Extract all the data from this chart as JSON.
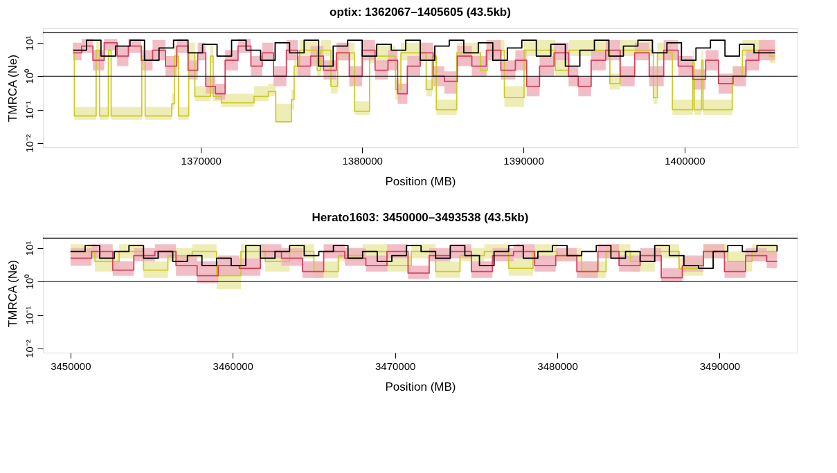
{
  "chart_data": [
    {
      "type": "step",
      "title": "optix: 1362067–1405605 (43.5kb)",
      "xlabel": "Position (MB)",
      "ylabel": "TMRCA (Ne)",
      "log": "y",
      "grid": false,
      "xlim": [
        1360200,
        1407000
      ],
      "xticks": [
        1370000,
        1380000,
        1390000,
        1400000
      ],
      "ylim": [
        0.0075,
        27
      ],
      "yticks": [
        {
          "value": 0.01,
          "label": "10⁻²"
        },
        {
          "value": 0.1,
          "label": "10⁻¹"
        },
        {
          "value": 1,
          "label": "10⁰"
        },
        {
          "value": 10,
          "label": "10¹"
        }
      ],
      "ref_lines": [
        {
          "axis": "y",
          "value": 1,
          "color": "#000000"
        },
        {
          "axis": "y",
          "value": 20,
          "color": "#000000"
        }
      ],
      "series": [
        {
          "color": "#cdcb28",
          "x": [
            1362067,
            1362150,
            1363500,
            1363710,
            1364260,
            1364430,
            1366330,
            1366540,
            1368190,
            1368350,
            1368610,
            1369240,
            1369620,
            1370590,
            1370760,
            1371270,
            1373290,
            1374180,
            1374640,
            1375610,
            1375780,
            1376120,
            1377210,
            1377430,
            1378060,
            1378480,
            1379530,
            1380460,
            1382070,
            1382400,
            1383970,
            1384340,
            1384600,
            1385860,
            1387340,
            1387760,
            1388820,
            1390040,
            1391980,
            1392830,
            1395360,
            1395990,
            1398060,
            1398310,
            1399240,
            1400500,
            1400590,
            1401050,
            1401140,
            1402950,
            1403580,
            1405270,
            1405605
          ],
          "values": [
            5,
            0.065,
            6,
            0.065,
            6,
            0.065,
            4,
            0.065,
            0.15,
            4,
            0.065,
            5,
            0.25,
            4,
            0.25,
            0.16,
            0.25,
            0.35,
            0.044,
            0.2,
            2,
            6,
            1.5,
            6,
            0.5,
            5,
            0.09,
            4,
            0.4,
            5,
            0.4,
            4,
            0.1,
            5,
            1.5,
            6,
            0.23,
            6,
            1.5,
            6,
            0.6,
            6,
            0.23,
            5,
            0.1,
            3,
            0.1,
            3,
            0.1,
            1,
            6,
            4,
            4
          ],
          "lower": [
            3,
            0.05,
            4,
            0.05,
            4,
            0.05,
            2.5,
            0.05,
            0.1,
            2.5,
            0.05,
            3,
            0.18,
            2.5,
            0.18,
            0.12,
            0.18,
            0.25,
            0.04,
            0.1,
            1,
            4,
            1,
            4,
            0.3,
            3,
            0.07,
            2.5,
            0.2,
            3,
            0.25,
            2.5,
            0.07,
            3,
            1,
            4,
            0.12,
            4,
            1,
            4,
            0.4,
            4,
            0.15,
            3,
            0.07,
            2,
            0.07,
            2,
            0.07,
            0.7,
            4,
            2.5,
            2.5
          ],
          "upper": [
            10,
            0.12,
            12,
            0.12,
            12,
            0.12,
            8,
            0.12,
            0.3,
            8,
            0.12,
            10,
            0.5,
            8,
            0.5,
            0.3,
            0.5,
            0.6,
            0.15,
            0.4,
            4,
            12,
            3,
            12,
            1,
            10,
            0.18,
            8,
            0.8,
            10,
            0.8,
            8,
            0.2,
            10,
            3,
            12,
            0.5,
            12,
            3,
            12,
            1.2,
            12,
            0.5,
            10,
            0.2,
            6,
            0.2,
            6,
            0.2,
            2,
            12,
            8,
            8
          ]
        },
        {
          "color": "#d6415c",
          "x": [
            1362067,
            1362600,
            1363300,
            1364000,
            1364800,
            1365500,
            1366300,
            1367000,
            1367800,
            1368500,
            1369200,
            1369800,
            1370300,
            1370900,
            1371500,
            1372300,
            1373100,
            1373800,
            1374500,
            1375300,
            1376000,
            1376800,
            1377600,
            1378400,
            1379200,
            1380000,
            1380800,
            1381600,
            1382200,
            1382800,
            1383600,
            1384400,
            1385100,
            1385900,
            1386800,
            1387700,
            1388600,
            1389500,
            1390200,
            1391000,
            1391900,
            1392800,
            1393400,
            1394200,
            1395100,
            1396000,
            1396900,
            1397800,
            1398700,
            1399600,
            1400500,
            1401300,
            1402100,
            1403000,
            1403800,
            1404600,
            1405605
          ],
          "values": [
            5,
            8,
            3,
            10,
            4,
            8,
            3,
            6,
            2,
            8,
            1.5,
            5,
            0.5,
            0.3,
            3,
            8,
            2,
            5,
            1,
            6,
            2,
            4,
            1.5,
            5,
            1,
            6,
            1.5,
            3,
            0.3,
            2,
            5,
            1,
            0.7,
            4,
            2,
            6,
            1.5,
            3,
            0.5,
            2,
            5,
            1,
            0.5,
            3,
            6,
            1,
            5,
            1,
            6,
            2,
            0.8,
            3,
            0.6,
            1,
            3,
            6,
            6
          ],
          "lower": [
            3,
            5,
            1.5,
            6,
            2,
            5,
            1.5,
            3,
            1,
            5,
            0.8,
            3,
            0.3,
            0.2,
            1.5,
            5,
            1,
            3,
            0.5,
            3,
            1,
            2,
            0.8,
            3,
            0.5,
            3,
            0.8,
            1.5,
            0.15,
            1,
            3,
            0.5,
            0.3,
            2,
            1,
            3,
            0.8,
            1.5,
            0.25,
            1,
            3,
            0.5,
            0.25,
            1.5,
            3,
            0.5,
            3,
            0.5,
            3,
            1,
            0.4,
            1.5,
            0.3,
            0.5,
            1.5,
            3,
            3
          ],
          "upper": [
            10,
            13,
            6,
            13,
            8,
            13,
            6,
            12,
            4,
            13,
            3,
            10,
            1,
            0.6,
            6,
            13,
            4,
            10,
            2,
            12,
            4,
            8,
            3,
            10,
            2,
            12,
            3,
            6,
            0.6,
            4,
            10,
            2,
            1.4,
            8,
            4,
            12,
            3,
            6,
            1,
            4,
            10,
            2,
            1,
            6,
            12,
            2,
            10,
            2,
            12,
            4,
            1.6,
            6,
            1.2,
            2,
            6,
            12,
            12
          ]
        },
        {
          "color": "#000000",
          "x": [
            1362067,
            1362900,
            1363800,
            1364700,
            1365600,
            1366500,
            1367400,
            1368300,
            1369200,
            1370100,
            1371000,
            1371900,
            1372800,
            1373700,
            1374600,
            1375500,
            1376400,
            1377300,
            1378200,
            1379100,
            1380000,
            1380900,
            1381800,
            1382700,
            1383600,
            1384500,
            1385400,
            1386300,
            1387200,
            1388100,
            1389000,
            1389900,
            1390800,
            1391700,
            1392600,
            1393500,
            1394400,
            1395300,
            1396200,
            1397100,
            1398000,
            1398900,
            1399800,
            1400700,
            1401600,
            1402500,
            1403400,
            1404300,
            1405605
          ],
          "values": [
            6,
            12,
            4,
            8,
            12,
            3,
            7,
            12,
            5,
            9,
            4,
            12,
            6,
            3,
            10,
            5,
            12,
            2,
            8,
            12,
            4,
            9,
            6,
            12,
            3,
            8,
            12,
            5,
            10,
            3,
            7,
            12,
            4,
            9,
            2,
            6,
            12,
            4,
            8,
            12,
            5,
            10,
            3,
            7,
            12,
            4,
            9,
            5,
            5
          ]
        }
      ]
    },
    {
      "type": "step",
      "title": "Herato1603: 3450000–3493538 (43.5kb)",
      "xlabel": "Position (MB)",
      "ylabel": "TMRCA (Ne)",
      "log": "y",
      "grid": false,
      "xlim": [
        3448300,
        3494800
      ],
      "xticks": [
        3450000,
        3460000,
        3470000,
        3480000,
        3490000
      ],
      "ylim": [
        0.0075,
        27
      ],
      "yticks": [
        {
          "value": 0.01,
          "label": "10⁻²"
        },
        {
          "value": 0.1,
          "label": "10⁻¹"
        },
        {
          "value": 1,
          "label": "10⁰"
        },
        {
          "value": 10,
          "label": "10¹"
        }
      ],
      "ref_lines": [
        {
          "axis": "y",
          "value": 1,
          "color": "#000000"
        },
        {
          "axis": "y",
          "value": 20,
          "color": "#000000"
        }
      ],
      "series": [
        {
          "color": "#cdcb28",
          "x": [
            3450000,
            3451500,
            3453000,
            3454500,
            3456000,
            3457500,
            3459000,
            3460500,
            3462000,
            3463500,
            3465000,
            3466500,
            3468000,
            3469500,
            3471000,
            3472500,
            3474000,
            3475500,
            3477000,
            3478500,
            3480000,
            3481500,
            3483000,
            3484500,
            3486000,
            3487500,
            3489000,
            3490500,
            3492000,
            3493538
          ],
          "values": [
            8,
            4,
            8,
            2.2,
            6,
            8,
            1.5,
            8,
            4,
            8,
            2,
            6,
            8,
            3,
            8,
            2,
            6,
            8,
            2.5,
            8,
            6,
            2,
            8,
            4,
            8,
            2.5,
            8,
            4,
            8,
            8
          ],
          "lower": [
            5,
            2,
            5,
            1.3,
            4,
            5,
            0.6,
            5,
            2,
            5,
            1.3,
            4,
            5,
            2,
            5,
            1.3,
            4,
            5,
            1.5,
            5,
            4,
            1.3,
            5,
            2,
            5,
            1.5,
            5,
            2,
            5,
            5
          ],
          "upper": [
            13,
            8,
            13,
            4,
            10,
            13,
            3,
            13,
            8,
            13,
            4,
            10,
            13,
            6,
            13,
            4,
            10,
            13,
            5,
            13,
            10,
            4,
            13,
            8,
            13,
            5,
            13,
            8,
            13,
            13
          ]
        },
        {
          "color": "#d6415c",
          "x": [
            3450000,
            3451300,
            3452600,
            3453900,
            3455200,
            3456500,
            3457800,
            3459100,
            3460400,
            3461700,
            3463000,
            3464300,
            3465600,
            3466900,
            3468200,
            3469500,
            3470800,
            3472100,
            3473400,
            3474700,
            3476000,
            3477300,
            3478600,
            3479900,
            3481200,
            3482500,
            3483800,
            3485100,
            3486400,
            3487700,
            3489000,
            3490300,
            3491600,
            3492900,
            3493538
          ],
          "values": [
            5,
            8,
            2.2,
            6,
            8,
            3,
            1.5,
            3,
            2.5,
            8,
            5,
            2,
            8,
            5,
            3,
            8,
            1.8,
            6,
            8,
            2,
            6,
            8,
            3,
            6,
            2,
            8,
            3,
            6,
            1.3,
            3,
            8,
            2,
            6,
            4,
            4
          ],
          "lower": [
            3,
            5,
            1.5,
            4,
            5,
            1.5,
            0.9,
            1.5,
            1.5,
            5,
            3,
            1.3,
            5,
            3,
            2,
            5,
            1.2,
            4,
            5,
            1.3,
            4,
            5,
            2,
            4,
            1.3,
            5,
            2,
            4,
            1,
            2,
            5,
            1.3,
            4,
            2.5,
            2.5
          ],
          "upper": [
            10,
            13,
            4,
            10,
            13,
            6,
            4,
            6,
            5,
            13,
            10,
            4,
            13,
            10,
            6,
            13,
            3,
            10,
            13,
            4,
            10,
            13,
            6,
            10,
            4,
            13,
            6,
            10,
            2.5,
            6,
            13,
            4,
            10,
            8,
            8
          ]
        },
        {
          "color": "#000000",
          "x": [
            3450000,
            3450900,
            3451800,
            3452700,
            3453600,
            3454500,
            3455400,
            3456300,
            3457200,
            3458100,
            3459000,
            3459900,
            3460800,
            3461700,
            3462600,
            3463500,
            3464400,
            3465300,
            3466200,
            3467100,
            3468000,
            3468900,
            3469800,
            3470700,
            3471600,
            3472500,
            3473400,
            3474300,
            3475200,
            3476100,
            3477000,
            3477900,
            3478800,
            3479700,
            3480600,
            3481500,
            3482400,
            3483300,
            3484200,
            3485100,
            3486000,
            3486900,
            3487800,
            3488700,
            3489600,
            3490500,
            3491400,
            3492300,
            3493538
          ],
          "values": [
            8,
            12,
            5,
            8,
            12,
            5,
            8,
            4,
            6,
            3,
            5,
            3,
            12,
            5,
            8,
            12,
            6,
            8,
            12,
            5,
            8,
            4,
            6,
            12,
            8,
            5,
            12,
            6,
            3,
            8,
            12,
            5,
            8,
            12,
            6,
            8,
            12,
            5,
            8,
            4,
            12,
            6,
            3,
            2.5,
            8,
            12,
            8,
            12,
            8
          ]
        }
      ]
    }
  ]
}
